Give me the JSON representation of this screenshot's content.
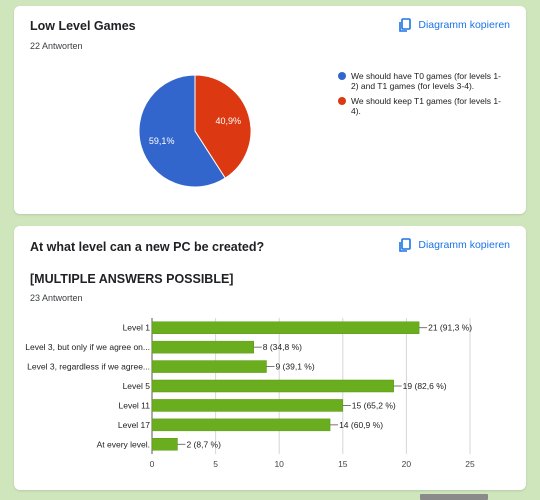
{
  "card1": {
    "title": "Low Level Games",
    "responses": "22 Antworten",
    "copy_label": "Diagramm kopieren"
  },
  "card2": {
    "title": "At what level can a new PC be created?",
    "subtitle": "[MULTIPLE ANSWERS POSSIBLE]",
    "responses": "23 Antworten",
    "copy_label": "Diagramm kopieren"
  },
  "icons": {
    "copy": "copy-icon"
  },
  "colors": {
    "accent": "#1a73e8",
    "pie_blue": "#3366cc",
    "pie_red": "#dc3912",
    "bar_green": "#6aad1f"
  },
  "chart_data": [
    {
      "type": "pie",
      "slices": [
        {
          "label": "We should have T0 games (for levels 1-2) and T1 games (for levels 3-4).",
          "value": 59.1,
          "display": "59,1%",
          "color": "#3366cc"
        },
        {
          "label": "We should keep T1 games (for levels 1-4).",
          "value": 40.9,
          "display": "40,9%",
          "color": "#dc3912"
        }
      ],
      "legend_position": "right"
    },
    {
      "type": "bar",
      "orientation": "horizontal",
      "categories": [
        "Level 1",
        "Level 3, but only if we agree on...",
        "Level 3, regardless if we agree...",
        "Level 5",
        "Level 11",
        "Level 17",
        "At every level."
      ],
      "values": [
        21,
        8,
        9,
        19,
        15,
        14,
        2
      ],
      "data_labels": [
        "21 (91,3 %)",
        "8 (34,8 %)",
        "9 (39,1 %)",
        "19 (82,6 %)",
        "15 (65,2 %)",
        "14 (60,9 %)",
        "2 (8,7 %)"
      ],
      "xlim": [
        0,
        25
      ],
      "xticks": [
        "0",
        "5",
        "10",
        "15",
        "20",
        "25"
      ],
      "color": "#6aad1f",
      "grid": true
    }
  ]
}
